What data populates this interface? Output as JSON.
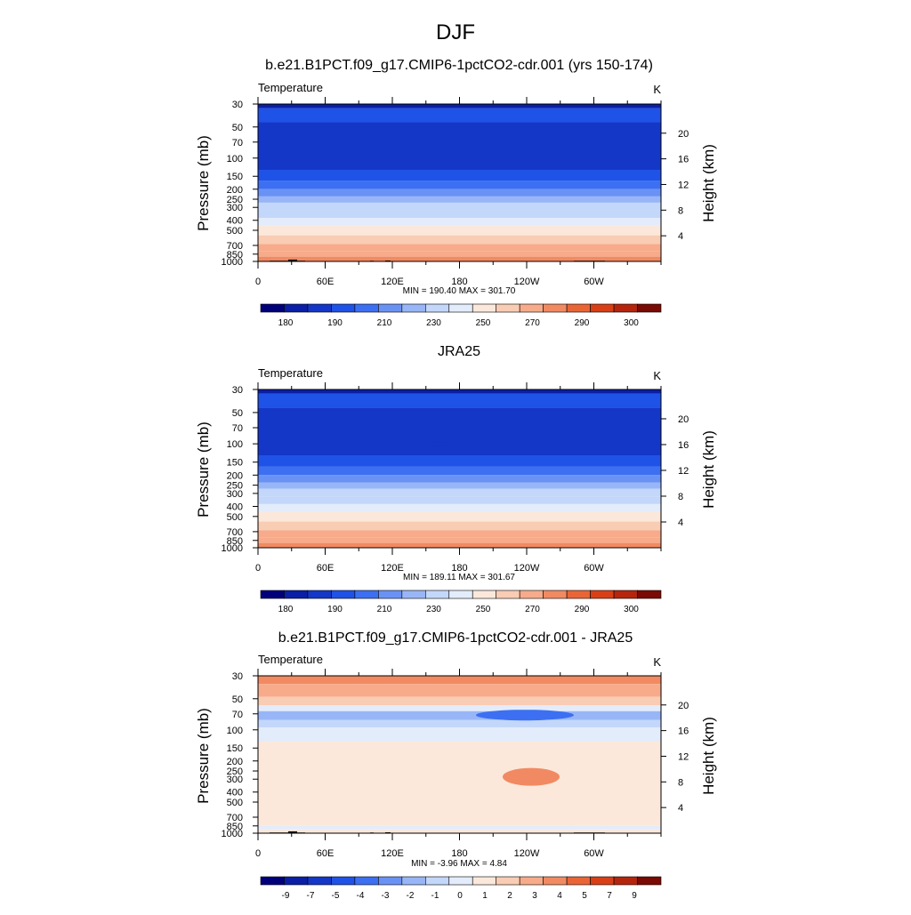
{
  "page_title": "DJF",
  "colors": {
    "temp_levels": [
      "#00007a",
      "#0a1fa5",
      "#1437c8",
      "#1f52e6",
      "#3d6ff2",
      "#6a92f5",
      "#98b6f7",
      "#c3d7fa",
      "#e3ecfb",
      "#fbe8db",
      "#f9ccb4",
      "#f7ab8a",
      "#f18a62",
      "#ea6536",
      "#d93f17",
      "#b5250e",
      "#7a0a04"
    ],
    "diff_levels": [
      "#00007a",
      "#0a1fa5",
      "#1437c8",
      "#1f52e6",
      "#3d6ff2",
      "#6a92f5",
      "#98b6f7",
      "#c3d7fa",
      "#e3ecfb",
      "#fbe8db",
      "#f9ccb4",
      "#f7ab8a",
      "#f18a62",
      "#ea6536",
      "#d93f17",
      "#b5250e",
      "#7a0a04"
    ],
    "topography": "#000000"
  },
  "chart_data": [
    {
      "type": "heatmap",
      "title": "b.e21.B1PCT.f09_g17.CMIP6-1pctCO2-cdr.001 (yrs 150-174)",
      "variable_label": "Temperature",
      "units_label": "K",
      "ylabel": "Pressure (mb)",
      "ylabel_right": "Height (km)",
      "x_ticks": [
        "0",
        "60E",
        "120E",
        "180",
        "120W",
        "60W"
      ],
      "y_ticks": [
        "30",
        "50",
        "70",
        "100",
        "150",
        "200",
        "250",
        "300",
        "400",
        "500",
        "700",
        "850",
        "1000"
      ],
      "y_ticks_right": [
        "20",
        "16",
        "12",
        "8",
        "4"
      ],
      "stats": "MIN = 190.40  MAX = 301.70",
      "colorbar_labels": [
        "180",
        "190",
        "210",
        "230",
        "250",
        "270",
        "290",
        "300"
      ],
      "color_index_by_level": [
        6,
        5,
        4,
        3,
        3,
        4,
        5,
        6,
        7,
        8,
        9,
        10,
        11,
        12,
        13,
        14
      ],
      "bands": [
        {
          "p": [
            30,
            33
          ],
          "level": 189
        },
        {
          "p": [
            33,
            45
          ],
          "level": 205
        },
        {
          "p": [
            45,
            130
          ],
          "level": 198
        },
        {
          "p": [
            130,
            165
          ],
          "level": 205
        },
        {
          "p": [
            165,
            200
          ],
          "level": 215
        },
        {
          "p": [
            200,
            235
          ],
          "level": 222
        },
        {
          "p": [
            235,
            270
          ],
          "level": 232
        },
        {
          "p": [
            270,
            320
          ],
          "level": 240
        },
        {
          "p": [
            320,
            380
          ],
          "level": 248
        },
        {
          "p": [
            380,
            450
          ],
          "level": 256
        },
        {
          "p": [
            450,
            560
          ],
          "level": 264
        },
        {
          "p": [
            560,
            680
          ],
          "level": 272
        },
        {
          "p": [
            680,
            800
          ],
          "level": 280
        },
        {
          "p": [
            800,
            900
          ],
          "level": 288
        },
        {
          "p": [
            900,
            1000
          ],
          "level": 294
        }
      ],
      "show_topography": true
    },
    {
      "type": "heatmap",
      "title": "JRA25",
      "variable_label": "Temperature",
      "units_label": "K",
      "ylabel": "Pressure (mb)",
      "ylabel_right": "Height (km)",
      "x_ticks": [
        "0",
        "60E",
        "120E",
        "180",
        "120W",
        "60W"
      ],
      "y_ticks": [
        "30",
        "50",
        "70",
        "100",
        "150",
        "200",
        "250",
        "300",
        "400",
        "500",
        "700",
        "850",
        "1000"
      ],
      "y_ticks_right": [
        "20",
        "16",
        "12",
        "8",
        "4"
      ],
      "stats": "MIN = 189.11  MAX = 301.67",
      "colorbar_labels": [
        "180",
        "190",
        "210",
        "230",
        "250",
        "270",
        "290",
        "300"
      ],
      "bands": [
        {
          "p": [
            30,
            33
          ],
          "level": 189
        },
        {
          "p": [
            33,
            45
          ],
          "level": 205
        },
        {
          "p": [
            45,
            130
          ],
          "level": 198
        },
        {
          "p": [
            130,
            165
          ],
          "level": 205
        },
        {
          "p": [
            165,
            200
          ],
          "level": 215
        },
        {
          "p": [
            200,
            235
          ],
          "level": 222
        },
        {
          "p": [
            235,
            270
          ],
          "level": 232
        },
        {
          "p": [
            270,
            320
          ],
          "level": 240
        },
        {
          "p": [
            320,
            380
          ],
          "level": 248
        },
        {
          "p": [
            380,
            450
          ],
          "level": 256
        },
        {
          "p": [
            450,
            560
          ],
          "level": 264
        },
        {
          "p": [
            560,
            680
          ],
          "level": 272
        },
        {
          "p": [
            680,
            800
          ],
          "level": 280
        },
        {
          "p": [
            800,
            900
          ],
          "level": 288
        },
        {
          "p": [
            900,
            1000
          ],
          "level": 294
        }
      ],
      "show_topography": false
    },
    {
      "type": "heatmap",
      "title": "b.e21.B1PCT.f09_g17.CMIP6-1pctCO2-cdr.001 - JRA25",
      "variable_label": "Temperature",
      "units_label": "K",
      "ylabel": "Pressure (mb)",
      "ylabel_right": "Height (km)",
      "x_ticks": [
        "0",
        "60E",
        "120E",
        "180",
        "120W",
        "60W"
      ],
      "y_ticks": [
        "30",
        "50",
        "70",
        "100",
        "150",
        "200",
        "250",
        "300",
        "400",
        "500",
        "700",
        "850",
        "1000"
      ],
      "y_ticks_right": [
        "20",
        "16",
        "12",
        "8",
        "4"
      ],
      "stats": "MIN =  -3.96  MAX =   4.84",
      "colorbar_labels": [
        "-9",
        "-7",
        "-5",
        "-4",
        "-3",
        "-2",
        "-1",
        "0",
        "1",
        "2",
        "3",
        "4",
        "5",
        "7",
        "9"
      ],
      "bands": [
        {
          "p": [
            30,
            36
          ],
          "level": 4.5
        },
        {
          "p": [
            36,
            48
          ],
          "level": 3.5
        },
        {
          "p": [
            48,
            58
          ],
          "level": 2.5
        },
        {
          "p": [
            58,
            66
          ],
          "level": 0.5
        },
        {
          "p": [
            66,
            80
          ],
          "level": -1.5
        },
        {
          "p": [
            80,
            95
          ],
          "level": -0.5
        },
        {
          "p": [
            95,
            130
          ],
          "level": 0.5
        },
        {
          "p": [
            130,
            850
          ],
          "level": 1.5
        },
        {
          "p": [
            850,
            920
          ],
          "level": 0.5
        },
        {
          "p": [
            920,
            1000
          ],
          "level": 1.5
        }
      ],
      "show_topography": true
    }
  ]
}
